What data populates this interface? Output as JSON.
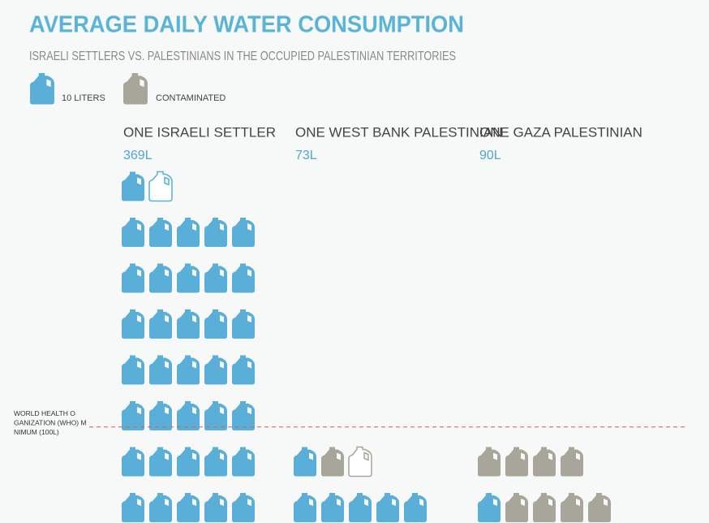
{
  "chart_data": {
    "type": "pictogram",
    "title": "AVERAGE DAILY WATER CONSUMPTION",
    "subtitle": "ISRAELI SETTLERS VS. PALESTINIANS IN THE OCCUPIED PALESTINIAN TERRITORIES",
    "unit": 10,
    "categories": [
      "ONE ISRAELI SETTLER",
      "ONE WEST BANK PALESTINIAN",
      "ONE GAZA PALESTINIAN"
    ],
    "series": [
      {
        "name": "10 LITERS",
        "color": "#5aafd9",
        "values": [
          369,
          73,
          90
        ],
        "value_labels": [
          "369L",
          "73L",
          "90L"
        ]
      },
      {
        "name": "CONTAMINATED",
        "color": "#a8a59a",
        "values": [
          0,
          13,
          80
        ]
      }
    ],
    "reference": {
      "value": 100,
      "label": "WORLD HEALTH ORGANIZATION (WHO) MINIMUM (100L)",
      "color": "#e05a4a"
    }
  }
}
